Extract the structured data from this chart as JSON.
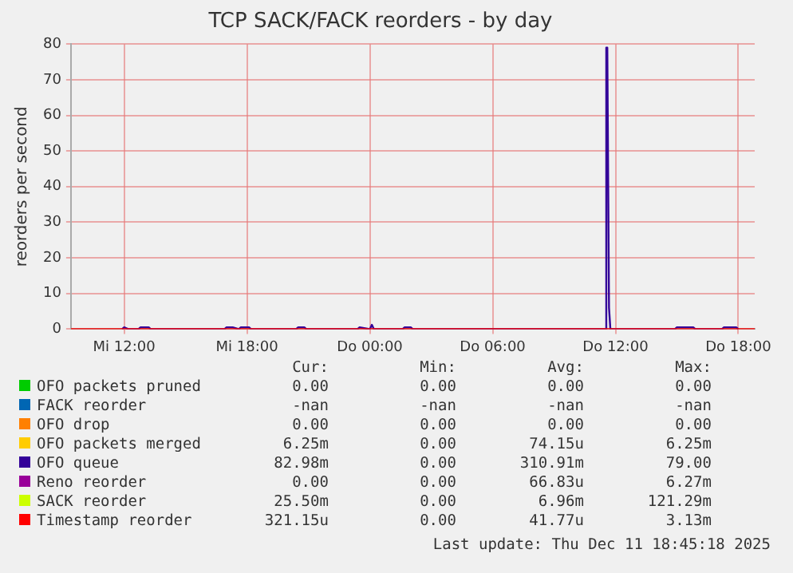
{
  "chart_data": {
    "type": "line",
    "title": "TCP SACK/FACK reorders - by day",
    "ylabel": "reorders per second",
    "xlim": [
      "2025-12-10T09:24",
      "2025-12-11T18:48"
    ],
    "xticks": [
      {
        "value": "2025-12-10T12:00",
        "label": "Mi 12:00"
      },
      {
        "value": "2025-12-10T18:00",
        "label": "Mi 18:00"
      },
      {
        "value": "2025-12-11T00:00",
        "label": "Do 00:00"
      },
      {
        "value": "2025-12-11T06:00",
        "label": "Do 06:00"
      },
      {
        "value": "2025-12-11T12:00",
        "label": "Do 12:00"
      },
      {
        "value": "2025-12-11T18:00",
        "label": "Do 18:00"
      }
    ],
    "ylim": [
      0,
      80
    ],
    "yticks": [
      0,
      10,
      20,
      30,
      40,
      50,
      60,
      70,
      80
    ],
    "grid": true,
    "legend": "bottom",
    "marker": "none",
    "line_style": "solid",
    "series": [
      {
        "name": "OFO packets pruned",
        "color": "#00cc00"
      },
      {
        "name": "FACK reorder",
        "color": "#0066b3"
      },
      {
        "name": "OFO drop",
        "color": "#ff8000"
      },
      {
        "name": "OFO packets merged",
        "color": "#ffcc00"
      },
      {
        "name": "OFO queue",
        "color": "#330099",
        "x": [
          "2025-12-10T11:54",
          "2025-12-10T12:00",
          "2025-12-10T12:12",
          "2025-12-10T12:42",
          "2025-12-10T12:48",
          "2025-12-10T13:12",
          "2025-12-10T13:18",
          "2025-12-10T16:54",
          "2025-12-10T17:00",
          "2025-12-10T17:18",
          "2025-12-10T17:36",
          "2025-12-10T17:42",
          "2025-12-10T18:06",
          "2025-12-10T18:12",
          "2025-12-10T20:24",
          "2025-12-10T20:30",
          "2025-12-10T20:48",
          "2025-12-10T20:54",
          "2025-12-10T23:24",
          "2025-12-10T23:30",
          "2025-12-11T00:00",
          "2025-12-11T00:06",
          "2025-12-11T00:12",
          "2025-12-11T01:36",
          "2025-12-11T01:42",
          "2025-12-11T02:00",
          "2025-12-11T02:06",
          "2025-12-11T11:30",
          "2025-12-11T11:33",
          "2025-12-11T11:36",
          "2025-12-11T11:41",
          "2025-12-11T11:45",
          "2025-12-11T14:54",
          "2025-12-11T15:00",
          "2025-12-11T15:48",
          "2025-12-11T15:54",
          "2025-12-11T17:12",
          "2025-12-11T17:18",
          "2025-12-11T17:54",
          "2025-12-11T18:00"
        ],
        "values": [
          0,
          0.5,
          0,
          0,
          0.5,
          0.5,
          0,
          0,
          0.5,
          0.5,
          0,
          0.5,
          0.5,
          0,
          0,
          0.5,
          0.5,
          0,
          0,
          0.5,
          0,
          1.2,
          0,
          0,
          0.5,
          0.5,
          0,
          0,
          79,
          79,
          6,
          0,
          0,
          0.5,
          0.5,
          0,
          0,
          0.5,
          0.5,
          0
        ]
      },
      {
        "name": "Reno reorder",
        "color": "#990099"
      },
      {
        "name": "SACK reorder",
        "color": "#ccff00"
      },
      {
        "name": "Timestamp reorder",
        "color": "#ff0000",
        "x": [
          "2025-12-10T09:24",
          "2025-12-11T18:48"
        ],
        "values": [
          0,
          0
        ]
      }
    ],
    "annotations": [
      "Cur:",
      "Min:",
      "Avg:",
      "Max:",
      "0.00",
      "0.00",
      "0.00",
      "0.00",
      "-nan",
      "-nan",
      "-nan",
      "-nan",
      "0.00",
      "0.00",
      "0.00",
      "0.00",
      "6.25m",
      "0.00",
      "74.15u",
      "6.25m",
      "82.98m",
      "0.00",
      "310.91m",
      "79.00",
      "0.00",
      "0.00",
      "66.83u",
      "6.27m",
      "25.50m",
      "0.00",
      "6.96m",
      "121.29m",
      "321.15u",
      "0.00",
      "41.77u",
      "3.13m",
      "Last update: Thu Dec 11 18:45:18 2025"
    ]
  }
}
